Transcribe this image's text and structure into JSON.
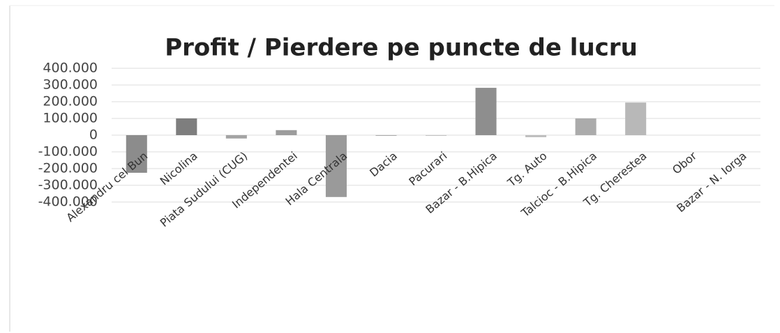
{
  "chart_data": {
    "type": "bar",
    "title": "Profit / Pierdere pe puncte de lucru",
    "categories": [
      "Alexandru cel Bun",
      "Nicolina",
      "Piata Sudului (CUG)",
      "Independentei",
      "Hala Centrala",
      "Dacia",
      "Pacurari",
      "Bazar - B.Hipica",
      "Tg. Auto",
      "Talcioc - B.Hipica",
      "Tg. Cherestea",
      "Obor",
      "Bazar - N. Iorga"
    ],
    "values": [
      -225000,
      100000,
      -20000,
      30000,
      -370000,
      -3000,
      -3000,
      283000,
      -12000,
      100000,
      195000,
      0,
      0
    ],
    "colors": [
      "#8c8c8c",
      "#7e7e7e",
      "#a4a4a4",
      "#9c9c9c",
      "#9a9a9a",
      "#8a8a8a",
      "#aaaaaa",
      "#8e8e8e",
      "#bdbdbd",
      "#ababab",
      "#b8b8b8",
      "#b0b0b0",
      "#b0b0b0"
    ],
    "ylim": [
      -400000,
      400000
    ],
    "yticks": [
      {
        "value": -400000,
        "label": "-400.000"
      },
      {
        "value": -300000,
        "label": "-300.000"
      },
      {
        "value": -200000,
        "label": "-200.000"
      },
      {
        "value": -100000,
        "label": "-100.000"
      },
      0,
      {
        "value": 100000,
        "label": "100.000"
      },
      {
        "value": 200000,
        "label": "200.000"
      },
      {
        "value": 300000,
        "label": "300.000"
      },
      {
        "value": 400000,
        "label": "400.000"
      }
    ],
    "grid": true
  }
}
